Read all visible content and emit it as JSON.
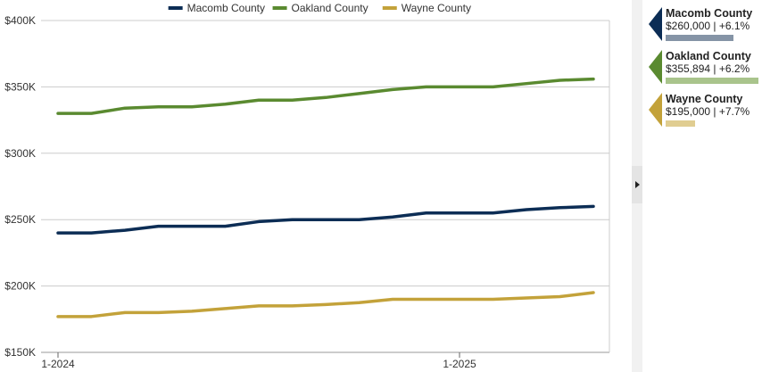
{
  "chart_data": {
    "type": "line",
    "title": "",
    "xlabel": "",
    "ylabel": "",
    "x": [
      "1-2024",
      "2-2024",
      "3-2024",
      "4-2024",
      "5-2024",
      "6-2024",
      "7-2024",
      "8-2024",
      "9-2024",
      "10-2024",
      "11-2024",
      "12-2024",
      "1-2025",
      "2-2025",
      "3-2025",
      "4-2025",
      "5-2025"
    ],
    "x_ticks": [
      "1-2024",
      "1-2025"
    ],
    "ylim": [
      150000,
      400000
    ],
    "y_ticks": [
      {
        "value": 150000,
        "label": "$150K"
      },
      {
        "value": 200000,
        "label": "$200K"
      },
      {
        "value": 250000,
        "label": "$250K"
      },
      {
        "value": 300000,
        "label": "$300K"
      },
      {
        "value": 350000,
        "label": "$350K"
      },
      {
        "value": 400000,
        "label": "$400K"
      }
    ],
    "grid": true,
    "legend_position": "top",
    "series": [
      {
        "name": "Macomb County",
        "color": "#0c2d55",
        "values": [
          240000,
          240000,
          242000,
          245000,
          245000,
          245000,
          248500,
          250000,
          250000,
          250000,
          252000,
          255000,
          255000,
          255000,
          257500,
          259000,
          260000
        ]
      },
      {
        "name": "Oakland County",
        "color": "#5a8a30",
        "values": [
          330000,
          330000,
          334000,
          335000,
          335000,
          337000,
          340000,
          340000,
          342000,
          345000,
          348000,
          350000,
          350000,
          350000,
          352500,
          355000,
          355894
        ]
      },
      {
        "name": "Wayne County",
        "color": "#c3a23a",
        "values": [
          177000,
          177000,
          180000,
          180000,
          181000,
          183000,
          185000,
          185000,
          186000,
          187500,
          190000,
          190000,
          190000,
          190000,
          191000,
          192000,
          195000
        ]
      }
    ]
  },
  "summary": {
    "cards": [
      {
        "name": "Macomb County",
        "value_text": "$260,000 | +6.1%",
        "color": "#0c2d55",
        "bar_color": "#8594a6",
        "bar_fill": 0.73
      },
      {
        "name": "Oakland County",
        "value_text": "$355,894 | +6.2%",
        "color": "#5a8a30",
        "bar_color": "#a9c48c",
        "bar_fill": 1.0
      },
      {
        "name": "Wayne County",
        "value_text": "$195,000 | +7.7%",
        "color": "#c3a23a",
        "bar_color": "#e0cd91",
        "bar_fill": 0.32
      }
    ]
  }
}
